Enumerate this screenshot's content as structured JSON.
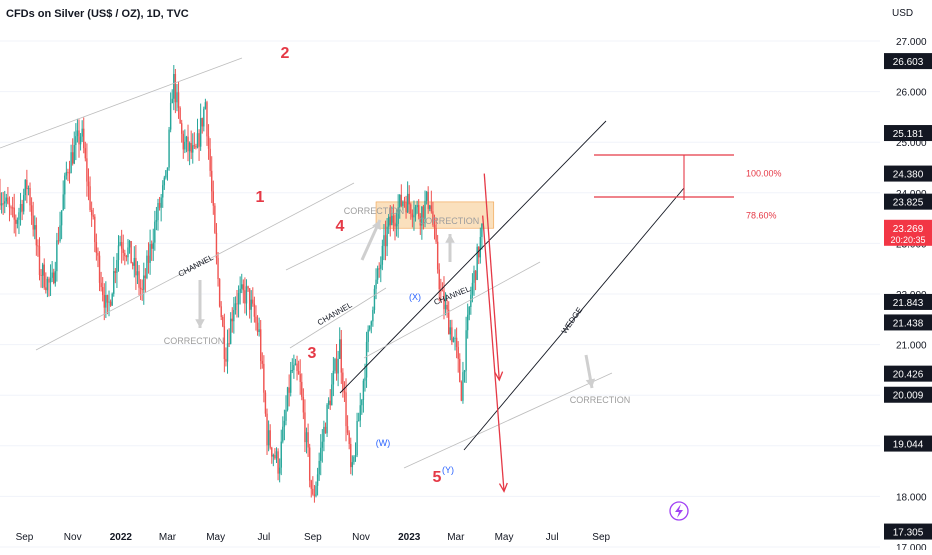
{
  "header": {
    "title": "CFDs on Silver (US$ / OZ), 1D, TVC",
    "currency": "USD"
  },
  "colors": {
    "up": "#26a69a",
    "down": "#ef5350",
    "wave": "#e53946",
    "subwave": "#2962ff",
    "annot": "#9e9e9e",
    "zone": "#f5c787"
  },
  "chart_data": {
    "type": "candlestick",
    "title": "CFDs on Silver (US$ / OZ), 1D, TVC",
    "ylabel": "USD",
    "ylim": [
      16.6,
      27.6
    ],
    "y_ticks": [
      "27.000",
      "26.000",
      "25.000",
      "24.000",
      "23.000",
      "22.000",
      "21.000",
      "20.000",
      "19.000",
      "18.000",
      "17.000"
    ],
    "x_ticks": [
      "Sep",
      "Nov",
      "2022",
      "Mar",
      "May",
      "Jul",
      "Sep",
      "Nov",
      "2023",
      "Mar",
      "May",
      "Jul",
      "Sep"
    ],
    "price_badges": [
      {
        "label": "26.603",
        "value": 26.603
      },
      {
        "label": "25.181",
        "value": 25.181
      },
      {
        "label": "24.380",
        "value": 24.38
      },
      {
        "label": "23.825",
        "value": 23.825
      },
      {
        "label": "21.843",
        "value": 21.843
      },
      {
        "label": "21.438",
        "value": 21.438
      },
      {
        "label": "20.426",
        "value": 20.426
      },
      {
        "label": "20.009",
        "value": 20.009
      },
      {
        "label": "19.044",
        "value": 19.044
      },
      {
        "label": "17.305",
        "value": 17.305
      }
    ],
    "last_price": {
      "label": "23.269",
      "countdown": "20:20:35",
      "value": 23.269
    },
    "fib_levels": [
      {
        "label": "100.00%",
        "value": 24.38
      },
      {
        "label": "78.60%",
        "value": 23.55
      }
    ],
    "wave_labels": [
      "2",
      "1",
      "4",
      "3",
      "5"
    ],
    "subwave_labels": [
      "(X)",
      "(W)",
      "(Y)"
    ],
    "annotations": [
      "CORRECTION",
      "CORRECTION",
      "CORRECTION",
      "CORRECTION",
      "CHANNEL",
      "CHANNEL",
      "CHANNEL",
      "WEDGE"
    ],
    "path": [
      [
        "2021-08-01",
        24.0
      ],
      [
        "2021-08-20",
        23.4
      ],
      [
        "2021-09-05",
        24.2
      ],
      [
        "2021-09-20",
        22.5
      ],
      [
        "2021-10-05",
        22.1
      ],
      [
        "2021-10-25",
        24.5
      ],
      [
        "2021-11-12",
        25.2
      ],
      [
        "2021-12-01",
        22.8
      ],
      [
        "2021-12-15",
        21.6
      ],
      [
        "2021-12-30",
        23.1
      ],
      [
        "2022-01-12",
        22.8
      ],
      [
        "2022-01-28",
        22.0
      ],
      [
        "2022-02-12",
        23.3
      ],
      [
        "2022-02-28",
        24.3
      ],
      [
        "2022-03-08",
        26.3
      ],
      [
        "2022-03-20",
        25.0
      ],
      [
        "2022-04-05",
        24.7
      ],
      [
        "2022-04-18",
        25.8
      ],
      [
        "2022-05-02",
        22.6
      ],
      [
        "2022-05-13",
        20.8
      ],
      [
        "2022-05-25",
        21.9
      ],
      [
        "2022-06-10",
        22.0
      ],
      [
        "2022-06-25",
        21.2
      ],
      [
        "2022-07-05",
        19.2
      ],
      [
        "2022-07-20",
        18.6
      ],
      [
        "2022-08-05",
        20.5
      ],
      [
        "2022-08-15",
        20.3
      ],
      [
        "2022-09-01",
        17.9
      ],
      [
        "2022-09-15",
        19.3
      ],
      [
        "2022-10-05",
        21.0
      ],
      [
        "2022-10-20",
        18.3
      ],
      [
        "2022-11-15",
        21.8
      ],
      [
        "2022-12-05",
        23.3
      ],
      [
        "2022-12-25",
        23.9
      ],
      [
        "2023-01-15",
        23.6
      ],
      [
        "2023-01-27",
        23.9
      ],
      [
        "2023-02-10",
        22.0
      ],
      [
        "2023-02-28",
        21.0
      ],
      [
        "2023-03-08",
        20.1
      ],
      [
        "2023-03-20",
        22.0
      ],
      [
        "2023-04-04",
        23.3
      ]
    ],
    "projections": [
      {
        "from": [
          "2023-04-06",
          24.38
        ],
        "to": [
          "2023-04-25",
          20.3
        ]
      },
      {
        "from": [
          "2023-04-04",
          23.55
        ],
        "to": [
          "2023-05-01",
          18.1
        ]
      }
    ]
  }
}
